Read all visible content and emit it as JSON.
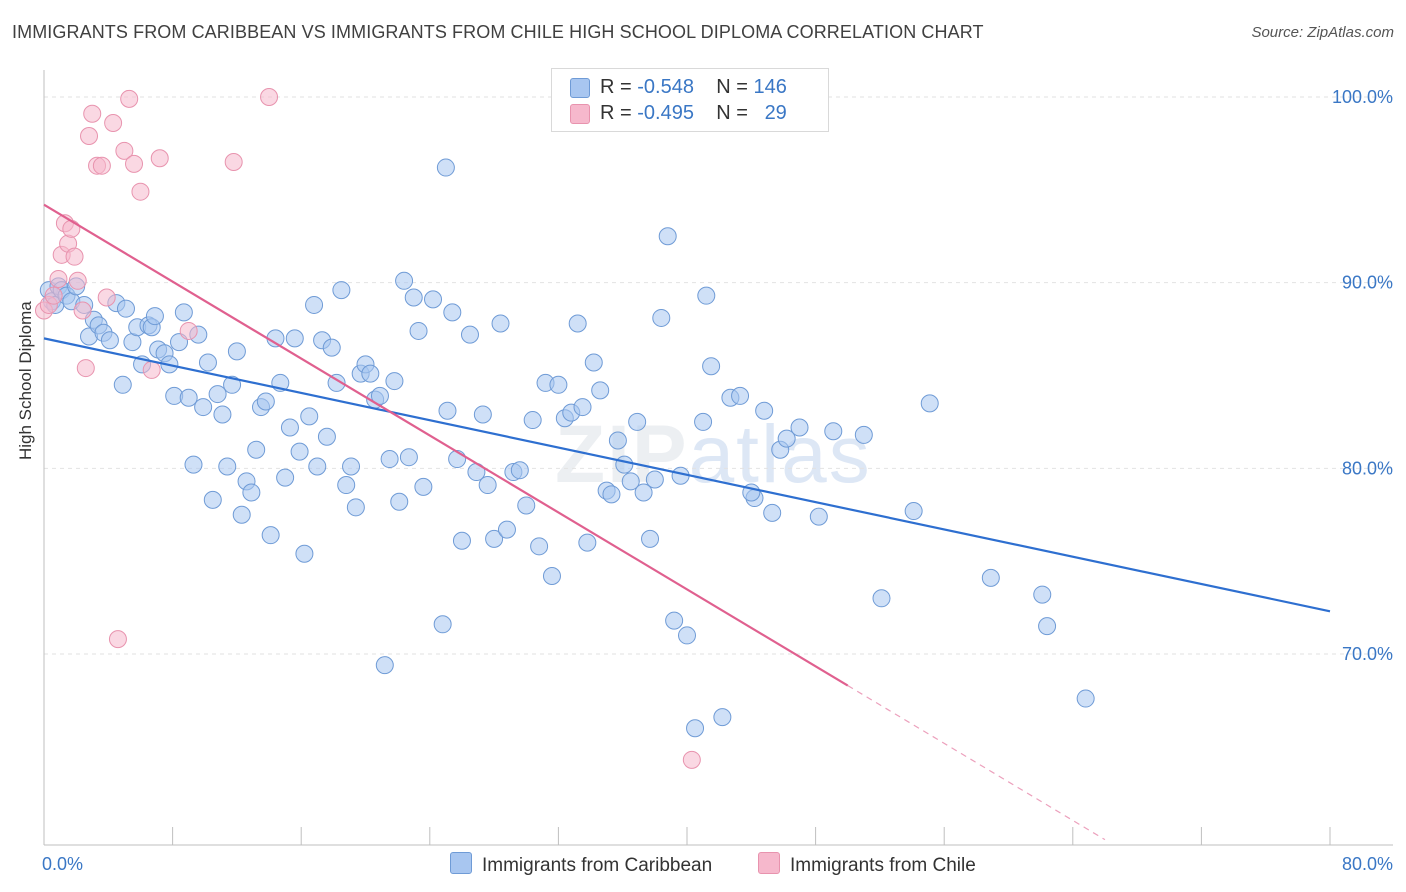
{
  "header": {
    "title": "IMMIGRANTS FROM CARIBBEAN VS IMMIGRANTS FROM CHILE HIGH SCHOOL DIPLOMA CORRELATION CHART",
    "source": "Source: ZipAtlas.com"
  },
  "legend": {
    "r_label": "R =",
    "n_label": "N =",
    "blue": {
      "r": "-0.548",
      "n": "146",
      "color": "#a8c6f0"
    },
    "pink": {
      "r": "-0.495",
      "n": "29",
      "color": "#f6b8cc"
    }
  },
  "watermark": {
    "zip": "ZIP",
    "atlas": "atlas"
  },
  "chart_data": {
    "type": "scatter",
    "title": "IMMIGRANTS FROM CARIBBEAN VS IMMIGRANTS FROM CHILE HIGH SCHOOL DIPLOMA CORRELATION CHART",
    "xlabel": "",
    "ylabel": "High School Diploma",
    "xlim": [
      0,
      80
    ],
    "ylim": [
      60,
      104
    ],
    "x_tick_labels": [
      "0.0%",
      "80.0%"
    ],
    "y_ticks": [
      70,
      80,
      90,
      100
    ],
    "y_tick_labels": [
      "70.0%",
      "80.0%",
      "90.0%",
      "100.0%"
    ],
    "grid": true,
    "legend_position": "top-center",
    "series": [
      {
        "name": "Immigrants from Caribbean",
        "color": "#a8c6f0",
        "stroke": "#6f9bd6",
        "trend": {
          "x1": 0,
          "y1": 87.0,
          "x2": 80,
          "y2": 72.3,
          "color": "#2e6fd0"
        },
        "points": [
          [
            0.3,
            89.6
          ],
          [
            0.5,
            89.0
          ],
          [
            0.7,
            88.8
          ],
          [
            0.9,
            89.8
          ],
          [
            1.1,
            89.6
          ],
          [
            1.4,
            89.3
          ],
          [
            1.7,
            89.0
          ],
          [
            2.0,
            89.8
          ],
          [
            2.5,
            88.8
          ],
          [
            2.8,
            87.1
          ],
          [
            3.1,
            88.0
          ],
          [
            3.4,
            87.7
          ],
          [
            3.7,
            87.3
          ],
          [
            4.1,
            86.9
          ],
          [
            4.5,
            88.9
          ],
          [
            4.9,
            84.5
          ],
          [
            5.1,
            88.6
          ],
          [
            5.5,
            86.8
          ],
          [
            5.8,
            87.6
          ],
          [
            6.1,
            85.6
          ],
          [
            6.5,
            87.7
          ],
          [
            6.7,
            87.6
          ],
          [
            6.9,
            88.2
          ],
          [
            7.1,
            86.4
          ],
          [
            7.5,
            86.2
          ],
          [
            7.8,
            85.6
          ],
          [
            8.1,
            83.9
          ],
          [
            8.4,
            86.8
          ],
          [
            8.7,
            88.4
          ],
          [
            9.0,
            83.8
          ],
          [
            9.3,
            80.2
          ],
          [
            9.6,
            87.2
          ],
          [
            9.9,
            83.3
          ],
          [
            10.2,
            85.7
          ],
          [
            10.5,
            78.3
          ],
          [
            10.8,
            84.0
          ],
          [
            11.1,
            82.9
          ],
          [
            11.4,
            80.1
          ],
          [
            11.7,
            84.5
          ],
          [
            12.0,
            86.3
          ],
          [
            12.3,
            77.5
          ],
          [
            12.6,
            79.3
          ],
          [
            12.9,
            78.7
          ],
          [
            13.2,
            81.0
          ],
          [
            13.5,
            83.3
          ],
          [
            13.8,
            83.6
          ],
          [
            14.1,
            76.4
          ],
          [
            14.4,
            87.0
          ],
          [
            14.7,
            84.6
          ],
          [
            15.0,
            79.5
          ],
          [
            15.3,
            82.2
          ],
          [
            15.6,
            87.0
          ],
          [
            15.9,
            80.9
          ],
          [
            16.2,
            75.4
          ],
          [
            16.5,
            82.8
          ],
          [
            16.8,
            88.8
          ],
          [
            17.0,
            80.1
          ],
          [
            17.3,
            86.9
          ],
          [
            17.6,
            81.7
          ],
          [
            17.9,
            86.5
          ],
          [
            18.2,
            84.6
          ],
          [
            18.5,
            89.6
          ],
          [
            18.8,
            79.1
          ],
          [
            19.1,
            80.1
          ],
          [
            19.4,
            77.9
          ],
          [
            19.7,
            85.1
          ],
          [
            20.0,
            85.6
          ],
          [
            20.3,
            85.1
          ],
          [
            20.6,
            83.7
          ],
          [
            20.9,
            83.9
          ],
          [
            21.2,
            69.4
          ],
          [
            21.5,
            80.5
          ],
          [
            21.8,
            84.7
          ],
          [
            22.1,
            78.2
          ],
          [
            22.4,
            90.1
          ],
          [
            22.7,
            80.6
          ],
          [
            23.0,
            89.2
          ],
          [
            23.3,
            87.4
          ],
          [
            23.6,
            79.0
          ],
          [
            24.2,
            89.1
          ],
          [
            24.8,
            71.6
          ],
          [
            25.1,
            83.1
          ],
          [
            25.4,
            88.4
          ],
          [
            25.7,
            80.5
          ],
          [
            26.0,
            76.1
          ],
          [
            26.5,
            87.2
          ],
          [
            26.9,
            79.8
          ],
          [
            27.3,
            82.9
          ],
          [
            27.6,
            79.1
          ],
          [
            28.0,
            76.2
          ],
          [
            28.4,
            87.8
          ],
          [
            28.8,
            76.7
          ],
          [
            29.2,
            79.8
          ],
          [
            29.6,
            79.9
          ],
          [
            30.0,
            78.0
          ],
          [
            30.4,
            82.6
          ],
          [
            30.8,
            75.8
          ],
          [
            31.2,
            84.6
          ],
          [
            31.6,
            74.2
          ],
          [
            32.0,
            84.5
          ],
          [
            32.4,
            82.7
          ],
          [
            32.8,
            83.0
          ],
          [
            33.2,
            87.8
          ],
          [
            33.5,
            83.3
          ],
          [
            33.8,
            76.0
          ],
          [
            34.2,
            85.7
          ],
          [
            34.6,
            84.2
          ],
          [
            35.0,
            78.8
          ],
          [
            35.3,
            78.6
          ],
          [
            35.7,
            81.5
          ],
          [
            36.1,
            80.2
          ],
          [
            36.5,
            79.3
          ],
          [
            36.9,
            82.5
          ],
          [
            37.3,
            78.7
          ],
          [
            37.7,
            76.2
          ],
          [
            38.0,
            79.4
          ],
          [
            38.4,
            88.1
          ],
          [
            38.8,
            92.5
          ],
          [
            39.2,
            71.8
          ],
          [
            39.6,
            79.6
          ],
          [
            40.0,
            71.0
          ],
          [
            40.5,
            66.0
          ],
          [
            41.0,
            82.5
          ],
          [
            41.5,
            85.5
          ],
          [
            42.2,
            66.6
          ],
          [
            42.7,
            83.8
          ],
          [
            43.3,
            83.9
          ],
          [
            44.2,
            78.4
          ],
          [
            44.8,
            83.1
          ],
          [
            45.3,
            77.6
          ],
          [
            45.8,
            81.0
          ],
          [
            46.2,
            81.6
          ],
          [
            47.0,
            82.2
          ],
          [
            48.2,
            77.4
          ],
          [
            49.1,
            82.0
          ],
          [
            51.0,
            81.8
          ],
          [
            52.1,
            73.0
          ],
          [
            54.1,
            77.7
          ],
          [
            55.1,
            83.5
          ],
          [
            58.9,
            74.1
          ],
          [
            62.1,
            73.2
          ],
          [
            62.4,
            71.5
          ],
          [
            64.8,
            67.6
          ],
          [
            25.0,
            96.2
          ],
          [
            41.2,
            89.3
          ],
          [
            44.0,
            78.7
          ]
        ]
      },
      {
        "name": "Immigrants from Chile",
        "color": "#f6b8cc",
        "stroke": "#e893ae",
        "trend": {
          "x1": 0,
          "y1": 94.2,
          "x2": 50,
          "y2": 68.3,
          "dash_to_x": 66,
          "dash_to_y": 60.0,
          "color": "#e0608f"
        },
        "points": [
          [
            0.0,
            88.5
          ],
          [
            0.3,
            88.8
          ],
          [
            0.6,
            89.3
          ],
          [
            0.9,
            90.2
          ],
          [
            1.1,
            91.5
          ],
          [
            1.3,
            93.2
          ],
          [
            1.5,
            92.1
          ],
          [
            1.7,
            92.9
          ],
          [
            1.9,
            91.4
          ],
          [
            2.1,
            90.1
          ],
          [
            2.4,
            88.5
          ],
          [
            2.6,
            85.4
          ],
          [
            2.8,
            97.9
          ],
          [
            3.0,
            99.1
          ],
          [
            3.3,
            96.3
          ],
          [
            3.6,
            96.3
          ],
          [
            3.9,
            89.2
          ],
          [
            4.3,
            98.6
          ],
          [
            4.6,
            70.8
          ],
          [
            5.0,
            97.1
          ],
          [
            5.3,
            99.9
          ],
          [
            5.6,
            96.4
          ],
          [
            6.0,
            94.9
          ],
          [
            6.7,
            85.3
          ],
          [
            7.2,
            96.7
          ],
          [
            9.0,
            87.4
          ],
          [
            11.8,
            96.5
          ],
          [
            14.0,
            100.0
          ],
          [
            40.3,
            64.3
          ]
        ]
      }
    ]
  },
  "footer": {
    "x_min_label": "0.0%",
    "x_max_label": "80.0%",
    "legend_blue": "Immigrants from Caribbean",
    "legend_pink": "Immigrants from Chile"
  }
}
